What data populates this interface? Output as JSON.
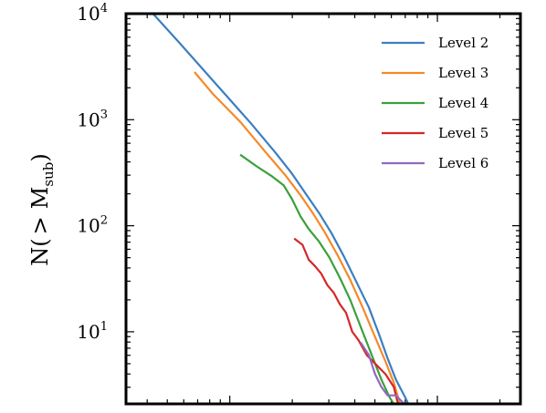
{
  "chart_data": {
    "type": "line",
    "title": "",
    "xlabel": "",
    "ylabel": "N(>M_sub)",
    "ylabel_main": "N(",
    "ylabel_gt": ">",
    "ylabel_M": "M",
    "ylabel_sub": "sub",
    "ylabel_close": ")",
    "x_scale": "log",
    "y_scale": "log",
    "xlim_log10": [
      0.5,
      2.4
    ],
    "ylim_log10": [
      0.32,
      4.0
    ],
    "yticks": [
      {
        "base": "10",
        "exp": "1",
        "log": 1
      },
      {
        "base": "10",
        "exp": "2",
        "log": 2
      },
      {
        "base": "10",
        "exp": "3",
        "log": 3
      },
      {
        "base": "10",
        "exp": "4",
        "log": 4
      }
    ],
    "legend_position": "top-right",
    "series": [
      {
        "name": "Level 2",
        "color": "#3a7fc1",
        "points": [
          [
            0.63,
            4.0
          ],
          [
            0.76,
            3.72
          ],
          [
            0.95,
            3.3
          ],
          [
            1.1,
            2.97
          ],
          [
            1.22,
            2.69
          ],
          [
            1.3,
            2.49
          ],
          [
            1.37,
            2.29
          ],
          [
            1.43,
            2.12
          ],
          [
            1.49,
            1.93
          ],
          [
            1.55,
            1.71
          ],
          [
            1.61,
            1.47
          ],
          [
            1.67,
            1.23
          ],
          [
            1.72,
            0.97
          ],
          [
            1.76,
            0.75
          ],
          [
            1.8,
            0.55
          ],
          [
            1.84,
            0.4
          ],
          [
            1.86,
            0.32
          ]
        ]
      },
      {
        "name": "Level 3",
        "color": "#f5892a",
        "points": [
          [
            0.83,
            3.45
          ],
          [
            0.92,
            3.24
          ],
          [
            1.05,
            2.98
          ],
          [
            1.17,
            2.7
          ],
          [
            1.27,
            2.47
          ],
          [
            1.34,
            2.29
          ],
          [
            1.4,
            2.12
          ],
          [
            1.46,
            1.93
          ],
          [
            1.52,
            1.72
          ],
          [
            1.58,
            1.49
          ],
          [
            1.64,
            1.23
          ],
          [
            1.7,
            0.95
          ],
          [
            1.75,
            0.72
          ],
          [
            1.79,
            0.52
          ],
          [
            1.82,
            0.32
          ]
        ]
      },
      {
        "name": "Level 4",
        "color": "#3aa03a",
        "points": [
          [
            1.05,
            2.67
          ],
          [
            1.13,
            2.56
          ],
          [
            1.2,
            2.47
          ],
          [
            1.26,
            2.38
          ],
          [
            1.3,
            2.25
          ],
          [
            1.34,
            2.09
          ],
          [
            1.38,
            1.97
          ],
          [
            1.43,
            1.85
          ],
          [
            1.48,
            1.7
          ],
          [
            1.53,
            1.51
          ],
          [
            1.58,
            1.3
          ],
          [
            1.63,
            1.05
          ],
          [
            1.67,
            0.85
          ],
          [
            1.7,
            0.7
          ],
          [
            1.73,
            0.55
          ],
          [
            1.77,
            0.38
          ],
          [
            1.79,
            0.32
          ]
        ]
      },
      {
        "name": "Level 5",
        "color": "#d62728",
        "points": [
          [
            1.31,
            1.88
          ],
          [
            1.35,
            1.82
          ],
          [
            1.38,
            1.68
          ],
          [
            1.41,
            1.62
          ],
          [
            1.44,
            1.55
          ],
          [
            1.47,
            1.44
          ],
          [
            1.5,
            1.37
          ],
          [
            1.53,
            1.26
          ],
          [
            1.56,
            1.18
          ],
          [
            1.59,
            1.0
          ],
          [
            1.62,
            0.92
          ],
          [
            1.66,
            0.78
          ],
          [
            1.7,
            0.7
          ],
          [
            1.75,
            0.6
          ],
          [
            1.79,
            0.48
          ],
          [
            1.81,
            0.32
          ]
        ]
      },
      {
        "name": "Level 6",
        "color": "#9467bd",
        "points": [
          [
            1.63,
            0.9
          ],
          [
            1.67,
            0.78
          ],
          [
            1.7,
            0.6
          ],
          [
            1.73,
            0.48
          ],
          [
            1.76,
            0.4
          ],
          [
            1.8,
            0.4
          ],
          [
            1.84,
            0.32
          ]
        ]
      }
    ]
  }
}
